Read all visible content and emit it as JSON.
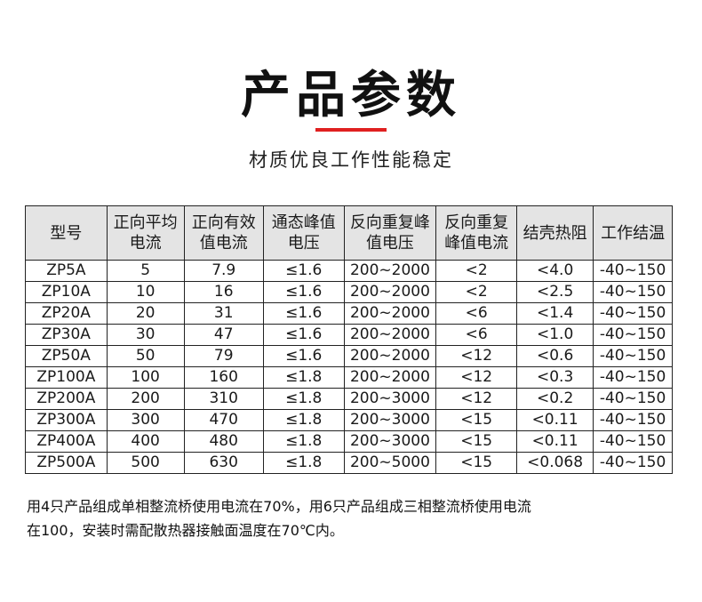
{
  "title": "产品参数",
  "subtitle": "材质优良工作性能稳定",
  "colors": {
    "accent": "#e02020",
    "header_bg": "#e4e4e4"
  },
  "table": {
    "headers": [
      "型号",
      "正向平均电流",
      "正向有效值电流",
      "通态峰值电压",
      "反向重复峰值电压",
      "反向重复峰值电流",
      "结壳热阻",
      "工作结温"
    ],
    "rows": [
      [
        "ZP5A",
        "5",
        "7.9",
        "≤1.6",
        "200~2000",
        "<2",
        "<4.0",
        "-40~150"
      ],
      [
        "ZP10A",
        "10",
        "16",
        "≤1.6",
        "200~2000",
        "<2",
        "<2.5",
        "-40~150"
      ],
      [
        "ZP20A",
        "20",
        "31",
        "≤1.6",
        "200~2000",
        "<6",
        "<1.4",
        "-40~150"
      ],
      [
        "ZP30A",
        "30",
        "47",
        "≤1.6",
        "200~2000",
        "<6",
        "<1.0",
        "-40~150"
      ],
      [
        "ZP50A",
        "50",
        "79",
        "≤1.6",
        "200~2000",
        "<12",
        "<0.6",
        "-40~150"
      ],
      [
        "ZP100A",
        "100",
        "160",
        "≤1.8",
        "200~2000",
        "<12",
        "<0.3",
        "-40~150"
      ],
      [
        "ZP200A",
        "200",
        "310",
        "≤1.8",
        "200~3000",
        "<12",
        "<0.2",
        "-40~150"
      ],
      [
        "ZP300A",
        "300",
        "470",
        "≤1.8",
        "200~3000",
        "<15",
        "<0.11",
        "-40~150"
      ],
      [
        "ZP400A",
        "400",
        "480",
        "≤1.8",
        "200~3000",
        "<15",
        "<0.11",
        "-40~150"
      ],
      [
        "ZP500A",
        "500",
        "630",
        "≤1.8",
        "200~5000",
        "<15",
        "<0.068",
        "-40~150"
      ]
    ]
  },
  "notes": [
    "用4只产品组成单相整流桥使用电流在70%，用6只产品组成三相整流桥使用电流",
    "在100，安装时需配散热器接触面温度在70℃内。"
  ]
}
